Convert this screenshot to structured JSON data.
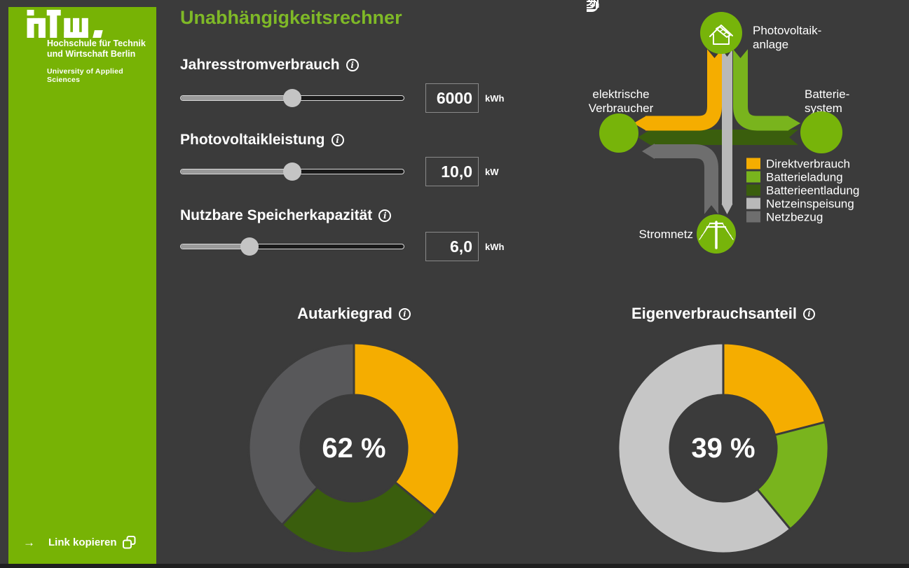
{
  "colors": {
    "background": "#3B3B3B",
    "bottom_strip": "#1F1F1F",
    "sidebar_green": "#77B305",
    "title_green": "#7FB927",
    "node_green": "#77B40A",
    "white": "#FFFFFF",
    "direct_yellow": "#F5AD00",
    "battery_charge_green": "#79B41D",
    "battery_discharge_green": "#3A5E0D",
    "feed_in_gray": "#B9B9B9",
    "grid_draw_gray": "#6E6E6E",
    "donut_dark_gray": "#58585A",
    "donut_light_gray": "#C6C6C6",
    "slider_fill": "#9A9A9A",
    "slider_track": "#1A1A1A",
    "slider_handle": "#C4C4C4"
  },
  "icons": {
    "info": "i",
    "arrow_right": "→",
    "copy": "copy-squares"
  },
  "sidebar": {
    "logo_text": "htw.",
    "line1": "Hochschule für Technik",
    "line2": "und Wirtschaft Berlin",
    "subtitle": "University of Applied Sciences",
    "link_label": "Link kopieren"
  },
  "header": {
    "title": "Unabhängigkeitsrechner"
  },
  "sliders": [
    {
      "label": "Jahresstromverbrauch",
      "value": "6000",
      "unit": "kWh",
      "percent": 50
    },
    {
      "label": "Photovoltaikleistung",
      "value": "10,0",
      "unit": "kW",
      "percent": 50
    },
    {
      "label": "Nutzbare Speicherkapazität",
      "value": "6,0",
      "unit": "kWh",
      "percent": 31
    }
  ],
  "diagram": {
    "nodes": {
      "pv": {
        "line1": "Photovoltaik-",
        "line2": "anlage"
      },
      "consumer": {
        "line1": "elektrische",
        "line2": "Verbraucher"
      },
      "battery": {
        "line1": "Batterie-",
        "line2": "system"
      },
      "grid": {
        "label": "Stromnetz"
      }
    },
    "legend": [
      {
        "label": "Direktverbrauch",
        "color": "#F5AD00"
      },
      {
        "label": "Batterieladung",
        "color": "#79B41D"
      },
      {
        "label": "Batterieentladung",
        "color": "#3A5E0D"
      },
      {
        "label": "Netzeinspeisung",
        "color": "#B9B9B9"
      },
      {
        "label": "Netzbezug",
        "color": "#6E6E6E"
      }
    ]
  },
  "chart_data": [
    {
      "type": "donut",
      "title": "Autarkiegrad",
      "center_label": "62 %",
      "value_percent": 62,
      "start_angle_deg": 0,
      "direction": "clockwise",
      "outer_radius_px": 150,
      "inner_radius_px": 76,
      "segments": [
        {
          "label": "Direktverbrauch",
          "value": 36,
          "color": "#F5AD00"
        },
        {
          "label": "Batterieentladung",
          "value": 26,
          "color": "#3A5E0D"
        },
        {
          "label": "Netzbezug",
          "value": 38,
          "color": "#58585A"
        }
      ]
    },
    {
      "type": "donut",
      "title": "Eigenverbrauchsanteil",
      "center_label": "39 %",
      "value_percent": 39,
      "start_angle_deg": 0,
      "direction": "clockwise",
      "outer_radius_px": 150,
      "inner_radius_px": 76,
      "segments": [
        {
          "label": "Direktverbrauch",
          "value": 21,
          "color": "#F5AD00"
        },
        {
          "label": "Batterieladung",
          "value": 18,
          "color": "#79B41D"
        },
        {
          "label": "Netzeinspeisung",
          "value": 61,
          "color": "#C6C6C6"
        }
      ]
    }
  ]
}
